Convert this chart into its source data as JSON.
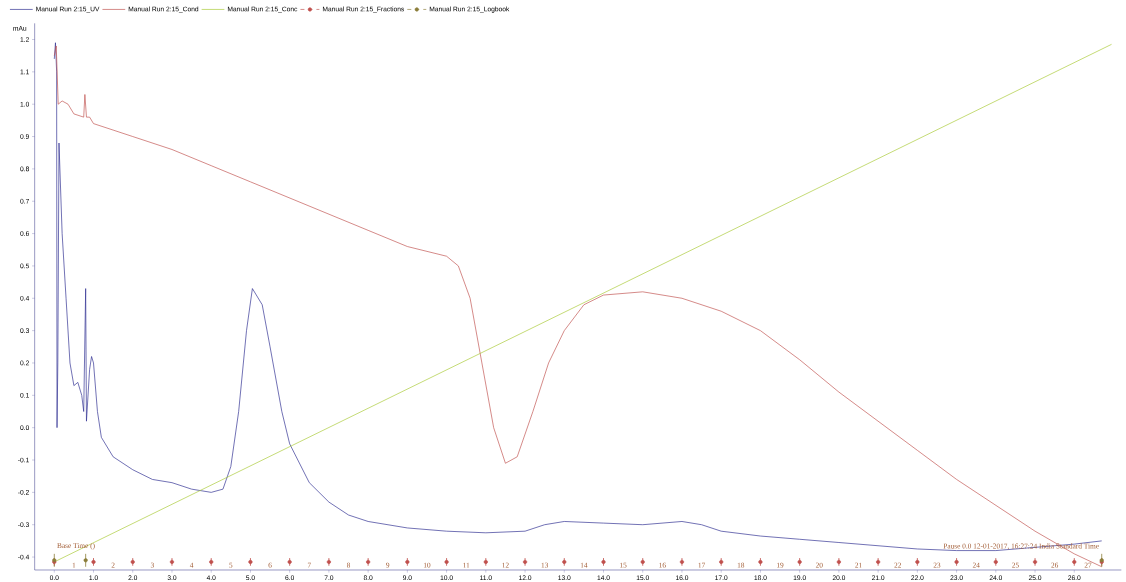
{
  "chart_data": {
    "type": "line",
    "ylabel": "mAu",
    "legend": "top left",
    "grid": false,
    "xlim": [
      -0.5,
      27.2
    ],
    "ylim": [
      -0.44,
      1.25
    ],
    "xticks": [
      {
        "value": 0,
        "label": "0.0"
      },
      {
        "value": 1,
        "label": "1.0"
      },
      {
        "value": 2,
        "label": "2.0"
      },
      {
        "value": 3,
        "label": "3.0"
      },
      {
        "value": 4,
        "label": "4.0"
      },
      {
        "value": 5,
        "label": "5.0"
      },
      {
        "value": 6,
        "label": "6.0"
      },
      {
        "value": 7,
        "label": "7.0"
      },
      {
        "value": 8,
        "label": "8.0"
      },
      {
        "value": 9,
        "label": "9.0"
      },
      {
        "value": 10,
        "label": "10.0"
      },
      {
        "value": 11,
        "label": "11.0"
      },
      {
        "value": 12,
        "label": "12.0"
      },
      {
        "value": 13,
        "label": "13.0"
      },
      {
        "value": 14,
        "label": "14.0"
      },
      {
        "value": 15,
        "label": "15.0"
      },
      {
        "value": 16,
        "label": "16.0"
      },
      {
        "value": 17,
        "label": "17.0"
      },
      {
        "value": 18,
        "label": "18.0"
      },
      {
        "value": 19,
        "label": "19.0"
      },
      {
        "value": 20,
        "label": "20.0"
      },
      {
        "value": 21,
        "label": "21.0"
      },
      {
        "value": 22,
        "label": "22.0"
      },
      {
        "value": 23,
        "label": "23.0"
      },
      {
        "value": 24,
        "label": "24.0"
      },
      {
        "value": 25,
        "label": "25.0"
      },
      {
        "value": 26,
        "label": "26.0"
      }
    ],
    "yticks": [
      -0.4,
      -0.3,
      -0.2,
      -0.1,
      {
        "value": 0,
        "label": "0.0"
      },
      0.1,
      0.2,
      0.3,
      0.4,
      0.5,
      0.6,
      0.7,
      0.8,
      0.9,
      {
        "value": 1,
        "label": "1.0"
      },
      1.1,
      1.2
    ],
    "series": [
      {
        "name": "Manual Run 2:15_UV",
        "color": "#2b2b8f",
        "x": [
          0.0,
          0.03,
          0.06,
          0.07,
          0.09,
          0.12,
          0.2,
          0.3,
          0.4,
          0.5,
          0.6,
          0.7,
          0.75,
          0.8,
          0.82,
          0.9,
          0.95,
          1.0,
          1.1,
          1.2,
          1.5,
          2.0,
          2.5,
          3.0,
          3.5,
          4.0,
          4.3,
          4.5,
          4.7,
          4.9,
          5.05,
          5.3,
          5.5,
          5.8,
          6.0,
          6.5,
          7.0,
          7.5,
          8.0,
          9.0,
          10.0,
          11.0,
          12.0,
          12.5,
          13.0,
          14.0,
          15.0,
          16.0,
          16.5,
          17.0,
          18.0,
          19.0,
          20.0,
          21.0,
          22.0,
          23.0,
          24.0,
          25.0,
          26.0,
          26.7
        ],
        "values": [
          1.14,
          1.19,
          1.1,
          0.0,
          0.2,
          0.88,
          0.6,
          0.4,
          0.2,
          0.13,
          0.14,
          0.1,
          0.05,
          0.43,
          0.02,
          0.18,
          0.22,
          0.2,
          0.05,
          -0.03,
          -0.09,
          -0.13,
          -0.16,
          -0.17,
          -0.19,
          -0.2,
          -0.19,
          -0.12,
          0.05,
          0.3,
          0.43,
          0.38,
          0.25,
          0.05,
          -0.05,
          -0.17,
          -0.23,
          -0.27,
          -0.29,
          -0.31,
          -0.32,
          -0.325,
          -0.32,
          -0.3,
          -0.29,
          -0.295,
          -0.3,
          -0.29,
          -0.3,
          -0.32,
          -0.335,
          -0.345,
          -0.355,
          -0.365,
          -0.375,
          -0.38,
          -0.38,
          -0.37,
          -0.36,
          -0.35
        ]
      },
      {
        "name": "Manual Run 2:15_Cond",
        "color": "#c0504d",
        "x": [
          0.0,
          0.05,
          0.1,
          0.2,
          0.35,
          0.5,
          0.75,
          0.78,
          0.82,
          0.9,
          1.0,
          1.5,
          2.0,
          3.0,
          4.0,
          5.0,
          6.0,
          7.0,
          8.0,
          9.0,
          9.5,
          10.0,
          10.3,
          10.6,
          10.9,
          11.2,
          11.5,
          11.8,
          12.2,
          12.6,
          13.0,
          13.5,
          14.0,
          15.0,
          16.0,
          17.0,
          18.0,
          19.0,
          20.0,
          21.0,
          22.0,
          23.0,
          24.0,
          25.0,
          26.0,
          26.7
        ],
        "values": [
          1.15,
          1.18,
          1.0,
          1.01,
          1.0,
          0.97,
          0.96,
          1.03,
          0.96,
          0.96,
          0.94,
          0.92,
          0.9,
          0.86,
          0.81,
          0.76,
          0.71,
          0.66,
          0.61,
          0.56,
          0.545,
          0.53,
          0.5,
          0.4,
          0.2,
          0.0,
          -0.11,
          -0.09,
          0.05,
          0.2,
          0.3,
          0.38,
          0.41,
          0.42,
          0.4,
          0.36,
          0.3,
          0.21,
          0.11,
          0.02,
          -0.07,
          -0.16,
          -0.24,
          -0.32,
          -0.39,
          -0.43
        ]
      },
      {
        "name": "Manual Run 2:15_Conc",
        "color": "#a8c832",
        "x": [
          0.0,
          26.95
        ],
        "values": [
          -0.415,
          1.185
        ]
      },
      {
        "name": "Manual Run 2:15_Fractions",
        "color": "#c0504d",
        "type": "scatter",
        "marker": "circle",
        "line_style": "dashed",
        "x": [
          0,
          1,
          2,
          3,
          4,
          5,
          6,
          7,
          8,
          9,
          10,
          11,
          12,
          13,
          14,
          15,
          16,
          17,
          18,
          19,
          20,
          21,
          22,
          23,
          24,
          25,
          26,
          26.7
        ],
        "values": [
          -0.415,
          -0.415,
          -0.415,
          -0.415,
          -0.415,
          -0.415,
          -0.415,
          -0.415,
          -0.415,
          -0.415,
          -0.415,
          -0.415,
          -0.415,
          -0.415,
          -0.415,
          -0.415,
          -0.415,
          -0.415,
          -0.415,
          -0.415,
          -0.415,
          -0.415,
          -0.415,
          -0.415,
          -0.415,
          -0.415,
          -0.415,
          -0.415
        ],
        "errors": [
          0.012,
          0.012,
          0.012,
          0.012,
          0.012,
          0.012,
          0.012,
          0.012,
          0.012,
          0.012,
          0.012,
          0.012,
          0.012,
          0.012,
          0.012,
          0.012,
          0.012,
          0.012,
          0.012,
          0.012,
          0.012,
          0.012,
          0.012,
          0.012,
          0.012,
          0.012,
          0.012,
          0.012
        ]
      },
      {
        "name": "Manual Run 2:15_Logbook",
        "color": "#8b7d3a",
        "type": "scatter",
        "marker": "circle",
        "line_style": "dashed",
        "x": [
          0.0,
          0.8,
          26.7
        ],
        "values": [
          -0.41,
          -0.41,
          -0.41
        ],
        "errors": [
          0.02,
          0.02,
          0.02
        ]
      }
    ],
    "annotations": [
      {
        "text": "Base Time ()",
        "x": 0.0,
        "y": -0.41
      },
      {
        "text": "Pause     0.0 12-01-2017, 16:27:24 India Standard Time",
        "x": 26.7,
        "y": -0.41
      },
      "1",
      "2",
      "3",
      "4",
      "5",
      "6",
      "7",
      "8",
      "9",
      "10",
      "11",
      "12",
      "13",
      "14",
      "15",
      "16",
      "17",
      "18",
      "19",
      "20",
      "21",
      "22",
      "23",
      "24",
      "25",
      "26",
      "27"
    ]
  }
}
